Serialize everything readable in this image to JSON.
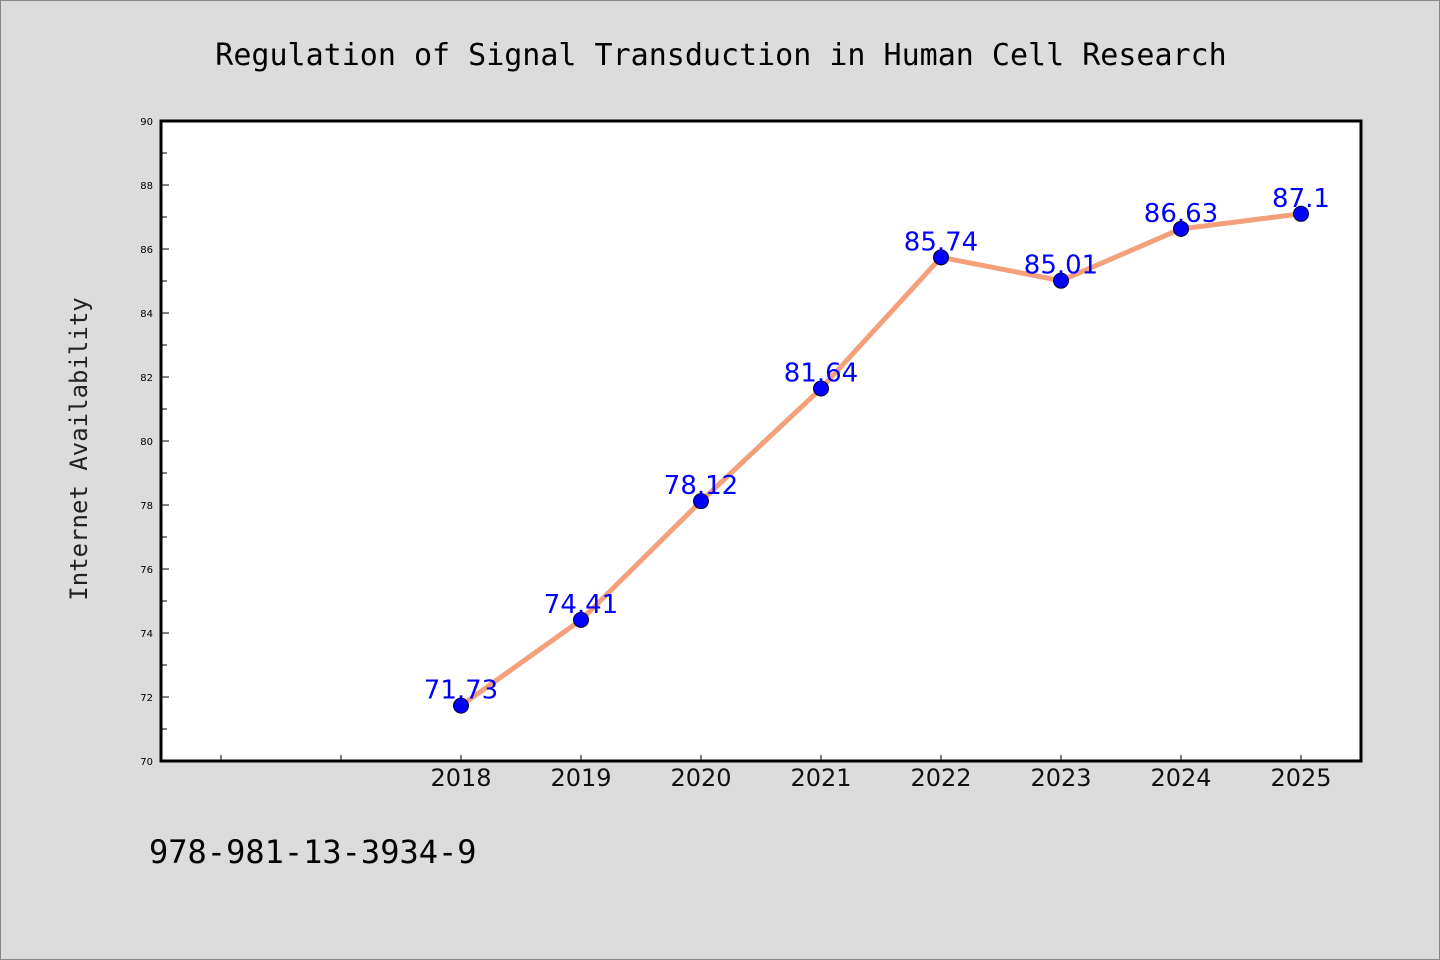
{
  "chart_data": {
    "type": "line",
    "title": "Regulation of Signal Transduction in Human Cell Research",
    "xlabel": "",
    "ylabel": "Internet Availability",
    "x": [
      "2018",
      "2019",
      "2020",
      "2021",
      "2022",
      "2023",
      "2024",
      "2025"
    ],
    "values": [
      71.73,
      74.41,
      78.12,
      81.64,
      85.74,
      85.01,
      86.63,
      87.1
    ],
    "data_labels": [
      "71.73",
      "74.41",
      "78.12",
      "81.64",
      "85.74",
      "85.01",
      "86.63",
      "87.1"
    ],
    "ylim": [
      70,
      90
    ],
    "yticks": [
      "70",
      "72",
      "74",
      "76",
      "78",
      "80",
      "82",
      "84",
      "86",
      "88",
      "90"
    ],
    "grid": false,
    "legend": "none",
    "colors": {
      "line": "#f4a07a",
      "marker": "#0000ff",
      "label": "#0000ff",
      "background": "#dcdcdc",
      "plot_area": "#ffffff"
    }
  },
  "footer_text": "978-981-13-3934-9"
}
